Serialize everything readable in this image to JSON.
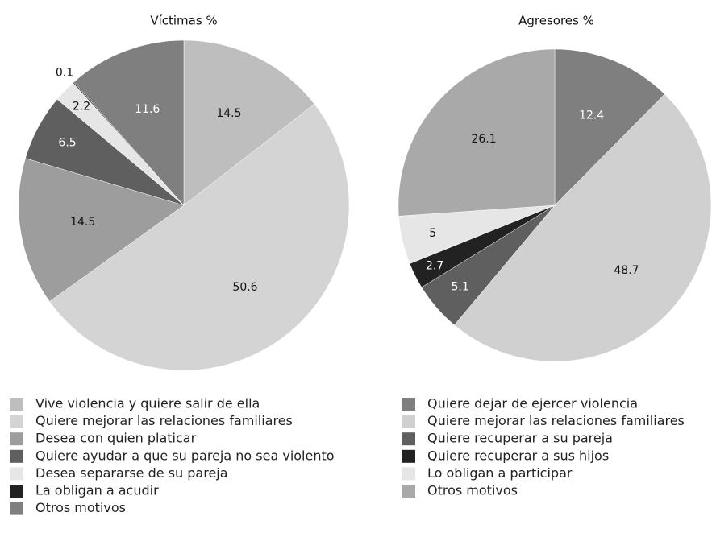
{
  "chart_data": [
    {
      "type": "pie",
      "title": "Víctimas %",
      "categories": [
        "Vive violencia y quiere salir de ella",
        "Quiere mejorar las relaciones familiares",
        "Desea con quien platicar",
        "Quiere ayudar a que su pareja no sea violento",
        "Desea separarse de su pareja",
        "La obligan a acudir",
        "Otros motivos"
      ],
      "values": [
        14.5,
        50.6,
        14.5,
        6.5,
        2.2,
        0.1,
        11.6
      ],
      "colors": [
        "#bebebe",
        "#d4d4d4",
        "#9d9d9d",
        "#5f5f5f",
        "#e6e6e6",
        "#222222",
        "#7f7f7f"
      ]
    },
    {
      "type": "pie",
      "title": "Agresores %",
      "categories": [
        "Quiere dejar de ejercer violencia",
        "Quiere mejorar las relaciones familiares",
        "Quiere recuperar a su pareja",
        "Quiere recuperar a sus hijos",
        "Lo obligan a participar",
        "Otros motivos"
      ],
      "values": [
        12.4,
        48.7,
        5.1,
        2.7,
        5,
        26.1
      ],
      "colors": [
        "#7f7f7f",
        "#d0d0d0",
        "#5f5f5f",
        "#222222",
        "#e6e6e6",
        "#a9a9a9"
      ]
    }
  ]
}
